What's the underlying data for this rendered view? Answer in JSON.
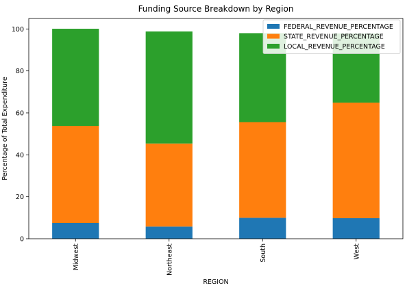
{
  "chart_data": {
    "type": "bar",
    "stacked": true,
    "title": "Funding Source Breakdown by Region",
    "xlabel": "REGION",
    "ylabel": "Percentage of Total Expenditure",
    "categories": [
      "Midwest",
      "Northeast",
      "South",
      "West"
    ],
    "series": [
      {
        "name": "FEDERAL_REVENUE_PERCENTAGE",
        "color": "#1f77b4",
        "values": [
          7.5,
          5.8,
          10.0,
          9.8
        ]
      },
      {
        "name": "STATE_REVENUE_PERCENTAGE",
        "color": "#ff7f0e",
        "values": [
          46.3,
          39.6,
          45.6,
          55.1
        ]
      },
      {
        "name": "LOCAL_REVENUE_PERCENTAGE",
        "color": "#2ca02c",
        "values": [
          46.3,
          53.4,
          42.4,
          33.0
        ]
      }
    ],
    "yticks": [
      0,
      20,
      40,
      60,
      80,
      100
    ],
    "ylim": [
      0,
      105
    ],
    "legend_position": "top-right",
    "grid": false
  }
}
